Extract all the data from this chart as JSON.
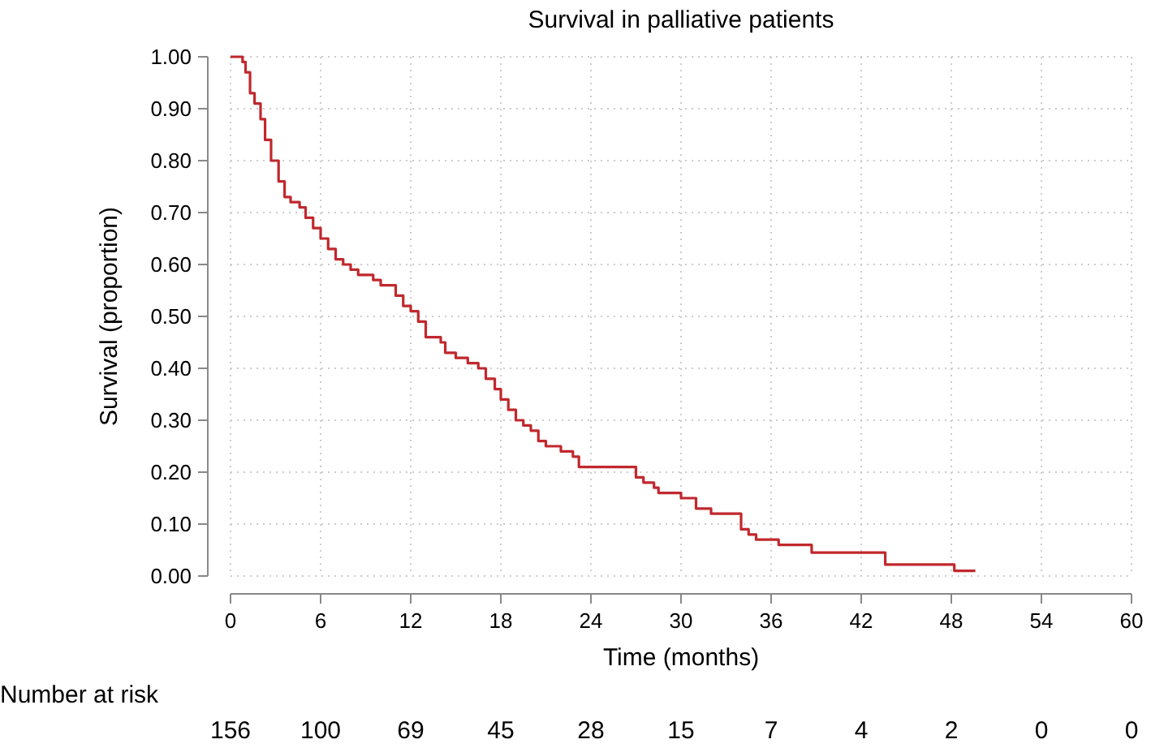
{
  "chart_data": {
    "type": "step",
    "title": "Survival in palliative patients",
    "xlabel": "Time (months)",
    "ylabel": "Survival (proportion)",
    "xlim": [
      0,
      60
    ],
    "xticks": [
      0,
      6,
      12,
      18,
      24,
      30,
      36,
      42,
      48,
      54,
      60
    ],
    "ylim": [
      0,
      1
    ],
    "yticks": [
      {
        "value": 0,
        "label": "0.00"
      },
      {
        "value": 0.1,
        "label": "0.10"
      },
      {
        "value": 0.2,
        "label": "0.20"
      },
      {
        "value": 0.3,
        "label": "0.30"
      },
      {
        "value": 0.4,
        "label": "0.40"
      },
      {
        "value": 0.5,
        "label": "0.50"
      },
      {
        "value": 0.6,
        "label": "0.60"
      },
      {
        "value": 0.7,
        "label": "0.70"
      },
      {
        "value": 0.8,
        "label": "0.80"
      },
      {
        "value": 0.9,
        "label": "0.90"
      },
      {
        "value": 1,
        "label": "1.00"
      }
    ],
    "grid": true,
    "marker": "none",
    "line_style": "solid",
    "series": [
      {
        "color": "#c0282d",
        "x": [
          0,
          0.5,
          0.8,
          1.0,
          1.3,
          1.6,
          2,
          2.3,
          2.7,
          3.2,
          3.6,
          4,
          4.6,
          5,
          5.5,
          6,
          6.5,
          7,
          7.5,
          8,
          8.5,
          9.5,
          10,
          11,
          11.5,
          12,
          12.5,
          13,
          14,
          14.3,
          15,
          15.8,
          16.5,
          17,
          17.6,
          18,
          18.5,
          19,
          19.5,
          20,
          20.5,
          21,
          22,
          22.8,
          23.2,
          26.5,
          27,
          27.5,
          28.2,
          28.5,
          30,
          31,
          32,
          34,
          34.5,
          35,
          36.5,
          38.7,
          43.6,
          48.2,
          49.6
        ],
        "values": [
          1,
          1,
          0.99,
          0.97,
          0.93,
          0.91,
          0.88,
          0.84,
          0.8,
          0.76,
          0.73,
          0.72,
          0.71,
          0.69,
          0.67,
          0.65,
          0.63,
          0.61,
          0.6,
          0.59,
          0.58,
          0.57,
          0.56,
          0.54,
          0.52,
          0.51,
          0.49,
          0.46,
          0.45,
          0.43,
          0.42,
          0.41,
          0.4,
          0.38,
          0.36,
          0.34,
          0.32,
          0.3,
          0.29,
          0.28,
          0.26,
          0.25,
          0.24,
          0.23,
          0.21,
          0.21,
          0.19,
          0.18,
          0.17,
          0.16,
          0.15,
          0.13,
          0.12,
          0.09,
          0.08,
          0.07,
          0.06,
          0.045,
          0.022,
          0.01,
          0.01
        ]
      }
    ],
    "annotations": [
      "Number at risk",
      "156",
      "100",
      "69",
      "45",
      "28",
      "15",
      "7",
      "4",
      "2",
      "0",
      "0"
    ]
  }
}
